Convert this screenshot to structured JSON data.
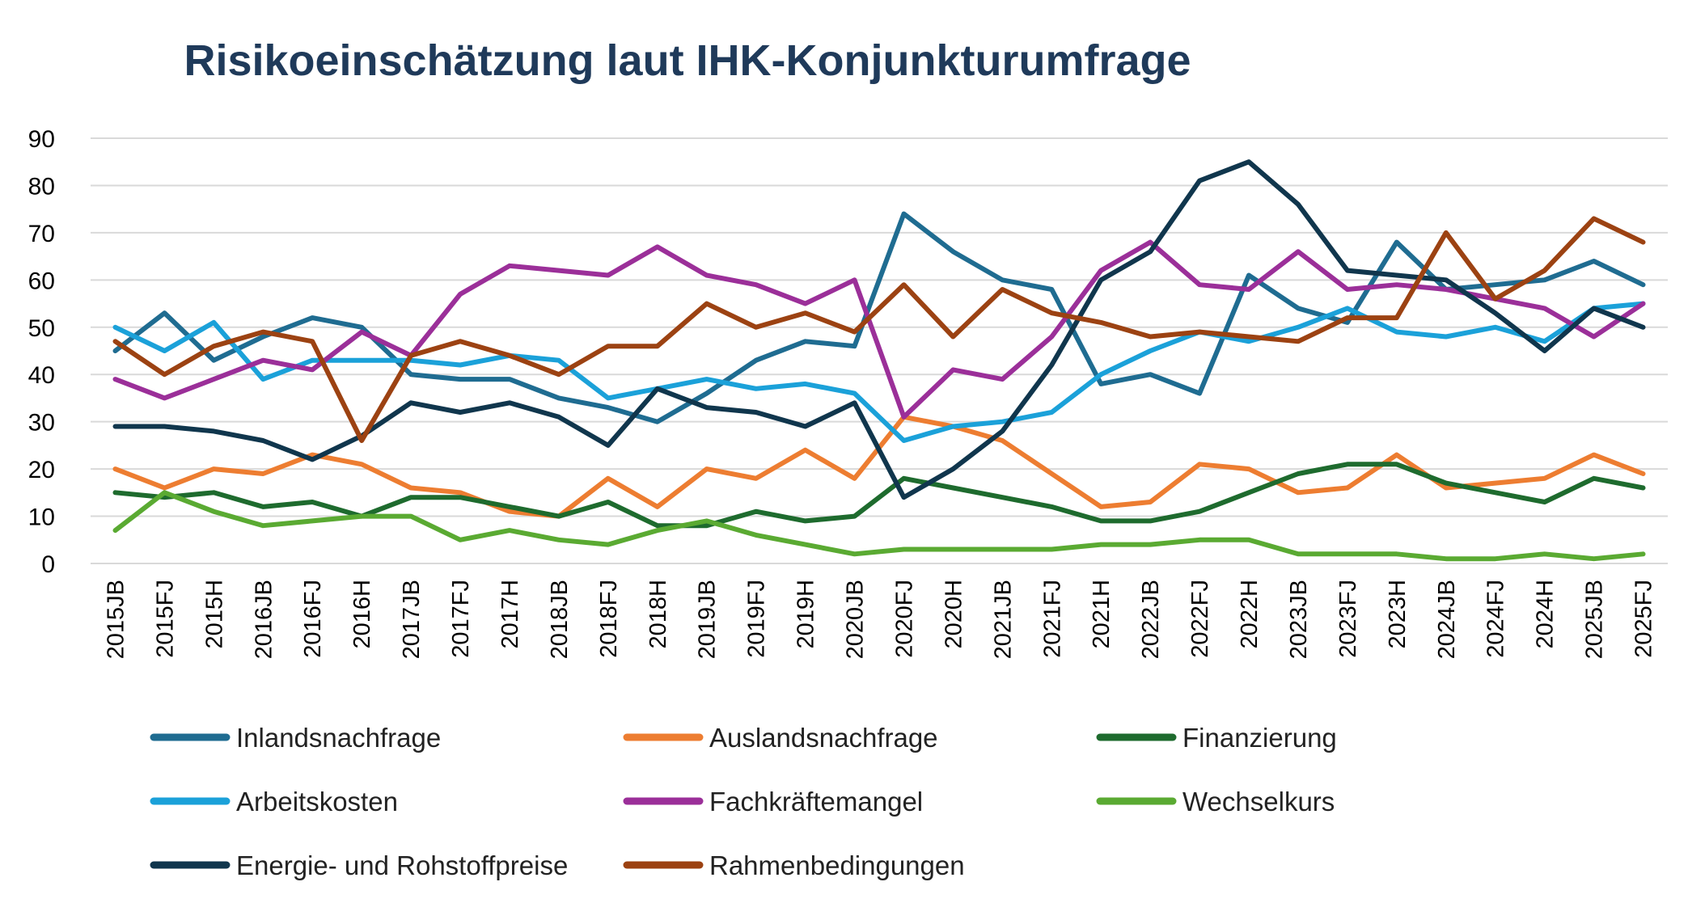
{
  "chart_data": {
    "type": "line",
    "title": "Risikoeinschätzung laut IHK-Konjunkturumfrage",
    "xlabel": "",
    "ylabel": "",
    "ylim": [
      0,
      90
    ],
    "yticks": [
      0,
      10,
      20,
      30,
      40,
      50,
      60,
      70,
      80,
      90
    ],
    "grid": true,
    "legend_position": "bottom",
    "categories": [
      "2015JB",
      "2015FJ",
      "2015H",
      "2016JB",
      "2016FJ",
      "2016H",
      "2017JB",
      "2017FJ",
      "2017H",
      "2018JB",
      "2018FJ",
      "2018H",
      "2019JB",
      "2019FJ",
      "2019H",
      "2020JB",
      "2020FJ",
      "2020H",
      "2021JB",
      "2021FJ",
      "2021H",
      "2022JB",
      "2022FJ",
      "2022H",
      "2023JB",
      "2023FJ",
      "2023H",
      "2024JB",
      "2024FJ",
      "2024H",
      "2025JB",
      "2025FJ"
    ],
    "series": [
      {
        "name": "Inlandsnachfrage",
        "color": "#1F6C91",
        "values": [
          45,
          53,
          43,
          48,
          52,
          50,
          40,
          39,
          39,
          35,
          33,
          30,
          36,
          43,
          47,
          46,
          74,
          66,
          60,
          58,
          38,
          40,
          36,
          61,
          54,
          51,
          68,
          58,
          59,
          60,
          64,
          59
        ]
      },
      {
        "name": "Auslandsnachfrage",
        "color": "#ED7D31",
        "values": [
          20,
          16,
          20,
          19,
          23,
          21,
          16,
          15,
          11,
          10,
          18,
          12,
          20,
          18,
          24,
          18,
          31,
          29,
          26,
          19,
          12,
          13,
          21,
          20,
          15,
          16,
          23,
          16,
          17,
          18,
          23,
          19
        ]
      },
      {
        "name": "Finanzierung",
        "color": "#1E6B2E",
        "values": [
          15,
          14,
          15,
          12,
          13,
          10,
          14,
          14,
          12,
          10,
          13,
          8,
          8,
          11,
          9,
          10,
          18,
          16,
          14,
          12,
          9,
          9,
          11,
          15,
          19,
          21,
          21,
          17,
          15,
          13,
          18,
          16
        ]
      },
      {
        "name": "Arbeitskosten",
        "color": "#1BA1D9",
        "values": [
          50,
          45,
          51,
          39,
          43,
          43,
          43,
          42,
          44,
          43,
          35,
          37,
          39,
          37,
          38,
          36,
          26,
          29,
          30,
          32,
          40,
          45,
          49,
          47,
          50,
          54,
          49,
          48,
          50,
          47,
          54,
          55
        ]
      },
      {
        "name": "Fachkräftemangel",
        "color": "#9B2F99",
        "values": [
          39,
          35,
          39,
          43,
          41,
          49,
          44,
          57,
          63,
          62,
          61,
          67,
          61,
          59,
          55,
          60,
          31,
          41,
          39,
          48,
          62,
          68,
          59,
          58,
          66,
          58,
          59,
          58,
          56,
          54,
          48,
          55
        ]
      },
      {
        "name": "Wechselkurs",
        "color": "#5AAA32",
        "values": [
          7,
          15,
          11,
          8,
          9,
          10,
          10,
          5,
          7,
          5,
          4,
          7,
          9,
          6,
          4,
          2,
          3,
          3,
          3,
          3,
          4,
          4,
          5,
          5,
          2,
          2,
          2,
          1,
          1,
          2,
          1,
          2
        ]
      },
      {
        "name": "Energie- und Rohstoffpreise",
        "color": "#10364D",
        "values": [
          29,
          29,
          28,
          26,
          22,
          27,
          34,
          32,
          34,
          31,
          25,
          37,
          33,
          32,
          29,
          34,
          14,
          20,
          28,
          42,
          60,
          66,
          81,
          85,
          76,
          62,
          61,
          60,
          53,
          45,
          54,
          50
        ]
      },
      {
        "name": "Rahmenbedingungen",
        "color": "#9C4212",
        "values": [
          47,
          40,
          46,
          49,
          47,
          26,
          44,
          47,
          44,
          40,
          46,
          46,
          55,
          50,
          53,
          49,
          59,
          48,
          58,
          53,
          51,
          48,
          49,
          48,
          47,
          52,
          52,
          70,
          56,
          62,
          73,
          68
        ]
      }
    ]
  }
}
